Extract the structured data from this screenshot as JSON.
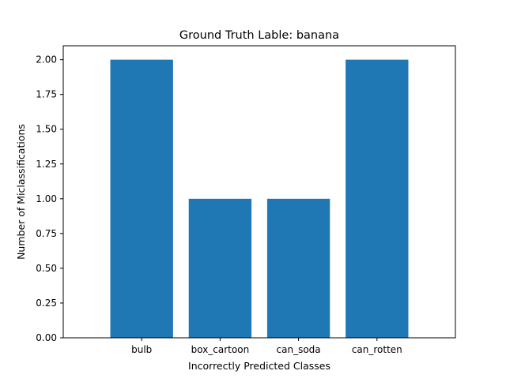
{
  "chart_data": {
    "type": "bar",
    "title": "Ground Truth Lable: banana",
    "xlabel": "Incorrectly Predicted Classes",
    "ylabel": "Number of Miclassifications",
    "categories": [
      "bulb",
      "box_cartoon",
      "can_soda",
      "can_rotten"
    ],
    "values": [
      2,
      1,
      1,
      2
    ],
    "ylim": [
      0,
      2.1
    ],
    "yticks": [
      "0.00",
      "0.25",
      "0.50",
      "0.75",
      "1.00",
      "1.25",
      "1.50",
      "1.75",
      "2.00"
    ],
    "bar_color": "#1f77b4",
    "grid": false,
    "legend": "none"
  }
}
